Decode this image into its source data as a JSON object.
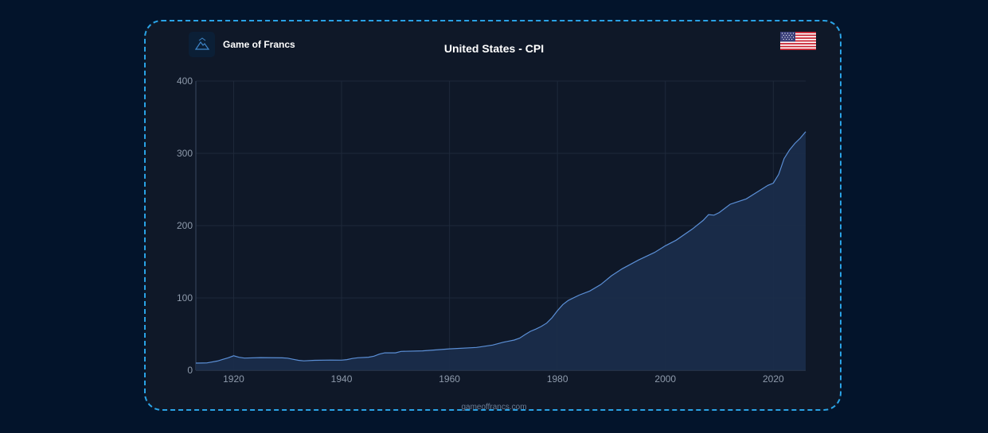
{
  "brand": {
    "name": "Game of Francs",
    "logo_icon": "mountain-logo-icon"
  },
  "header": {
    "title": "United States - CPI",
    "flag_icon": "us-flag-icon"
  },
  "footer": {
    "text": "gameoffrancs.com"
  },
  "colors": {
    "background": "#03142b",
    "card": "#0f1828",
    "border": "#2aa3e6",
    "line": "#5b8fd6",
    "area": "#1b2d4b"
  },
  "chart_data": {
    "type": "area",
    "title": "United States - CPI",
    "xlabel": "",
    "ylabel": "",
    "xlim": [
      1913,
      2026
    ],
    "ylim": [
      0,
      400
    ],
    "x_ticks": [
      1920,
      1940,
      1960,
      1980,
      2000,
      2020
    ],
    "y_ticks": [
      0,
      100,
      200,
      300,
      400
    ],
    "grid": true,
    "legend": "none",
    "series": [
      {
        "x": [
          1913,
          1915,
          1917,
          1918,
          1919,
          1920,
          1921,
          1922,
          1925,
          1929,
          1930,
          1931,
          1932,
          1933,
          1935,
          1938,
          1940,
          1941,
          1942,
          1943,
          1945,
          1946,
          1947,
          1948,
          1950,
          1951,
          1955,
          1960,
          1965,
          1968,
          1970,
          1972,
          1973,
          1974,
          1975,
          1976,
          1977,
          1978,
          1979,
          1980,
          1981,
          1982,
          1984,
          1986,
          1988,
          1990,
          1992,
          1995,
          1998,
          2000,
          2002,
          2005,
          2007,
          2008,
          2009,
          2010,
          2012,
          2015,
          2018,
          2019,
          2020,
          2021,
          2022,
          2023,
          2024,
          2025,
          2026
        ],
        "y": [
          9.9,
          10.1,
          12.8,
          15.1,
          17.3,
          20.0,
          17.9,
          16.8,
          17.5,
          17.1,
          16.7,
          15.2,
          13.7,
          13.0,
          13.7,
          14.1,
          14.0,
          14.7,
          16.3,
          17.3,
          18.0,
          19.5,
          22.3,
          24.1,
          24.1,
          26.0,
          26.8,
          29.6,
          31.5,
          34.8,
          38.8,
          41.8,
          44.4,
          49.3,
          53.8,
          56.9,
          60.6,
          65.2,
          72.6,
          82.4,
          90.9,
          96.5,
          103.9,
          109.6,
          118.3,
          130.7,
          140.3,
          152.4,
          163.0,
          172.2,
          179.9,
          195.3,
          207.3,
          215.3,
          214.5,
          218.1,
          229.6,
          237.0,
          251.1,
          255.7,
          258.8,
          271.0,
          292.7,
          304.7,
          313.7,
          321.0,
          330.0
        ]
      }
    ]
  }
}
